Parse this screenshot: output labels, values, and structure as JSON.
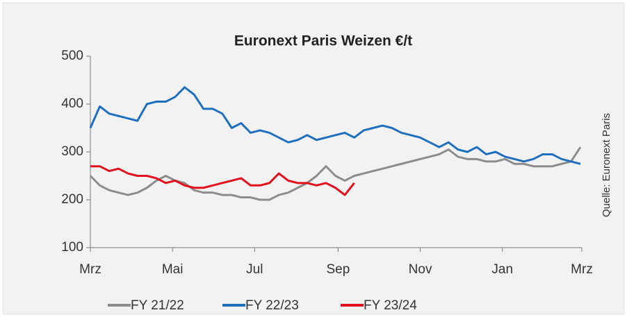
{
  "chart_data": {
    "type": "line",
    "title": "Euronext Paris Weizen €/t",
    "annotation": "Quelle: Euronext Paris",
    "x": [
      0,
      7,
      14,
      21,
      28,
      35,
      42,
      49,
      56,
      63,
      70,
      77,
      84,
      91,
      98,
      105,
      112,
      119,
      126,
      133,
      140,
      147,
      154,
      161,
      168,
      175,
      182,
      189,
      196,
      203,
      210,
      217,
      224,
      231,
      238,
      245,
      252,
      259,
      266,
      273,
      280,
      287,
      294,
      301,
      308,
      315,
      322,
      329,
      336,
      343,
      350,
      357,
      364
    ],
    "xlim": [
      0,
      365
    ],
    "xticks": [
      {
        "value": 0,
        "label": "Mrz"
      },
      {
        "value": 61,
        "label": "Mai"
      },
      {
        "value": 122,
        "label": "Jul"
      },
      {
        "value": 184,
        "label": "Sep"
      },
      {
        "value": 245,
        "label": "Nov"
      },
      {
        "value": 306,
        "label": "Jan"
      },
      {
        "value": 365,
        "label": "Mrz"
      }
    ],
    "ylim": [
      100,
      500
    ],
    "yticks": [
      100,
      200,
      300,
      400,
      500
    ],
    "grid": false,
    "legend": "bottom",
    "series": [
      {
        "name": "FY 21/22",
        "color": "#8c8c8c",
        "values": [
          250,
          230,
          220,
          215,
          210,
          215,
          225,
          240,
          250,
          240,
          235,
          220,
          215,
          215,
          210,
          210,
          205,
          205,
          200,
          200,
          210,
          215,
          225,
          235,
          250,
          270,
          250,
          240,
          250,
          255,
          260,
          265,
          270,
          275,
          280,
          285,
          290,
          295,
          305,
          290,
          285,
          285,
          280,
          280,
          285,
          275,
          275,
          270,
          270,
          270,
          275,
          280,
          310
        ]
      },
      {
        "name": "FY 22/23",
        "color": "#1f6fbf",
        "values": [
          350,
          395,
          380,
          375,
          370,
          365,
          400,
          405,
          405,
          415,
          435,
          420,
          390,
          390,
          380,
          350,
          360,
          340,
          345,
          340,
          330,
          320,
          325,
          335,
          325,
          330,
          335,
          340,
          330,
          345,
          350,
          355,
          350,
          340,
          335,
          330,
          320,
          310,
          320,
          305,
          300,
          310,
          295,
          300,
          290,
          285,
          280,
          285,
          295,
          295,
          285,
          280,
          275
        ]
      },
      {
        "name": "FY 23/24",
        "color": "#e3101e",
        "values": [
          270,
          270,
          260,
          265,
          255,
          250,
          250,
          245,
          235,
          240,
          230,
          225,
          225,
          230,
          235,
          240,
          245,
          230,
          230,
          235,
          255,
          240,
          235,
          235,
          230,
          235,
          225,
          210,
          235,
          null,
          null,
          null,
          null,
          null,
          null,
          null,
          null,
          null,
          null,
          null,
          null,
          null,
          null,
          null,
          null,
          null,
          null,
          null,
          null,
          null,
          null,
          null,
          null
        ]
      }
    ]
  }
}
